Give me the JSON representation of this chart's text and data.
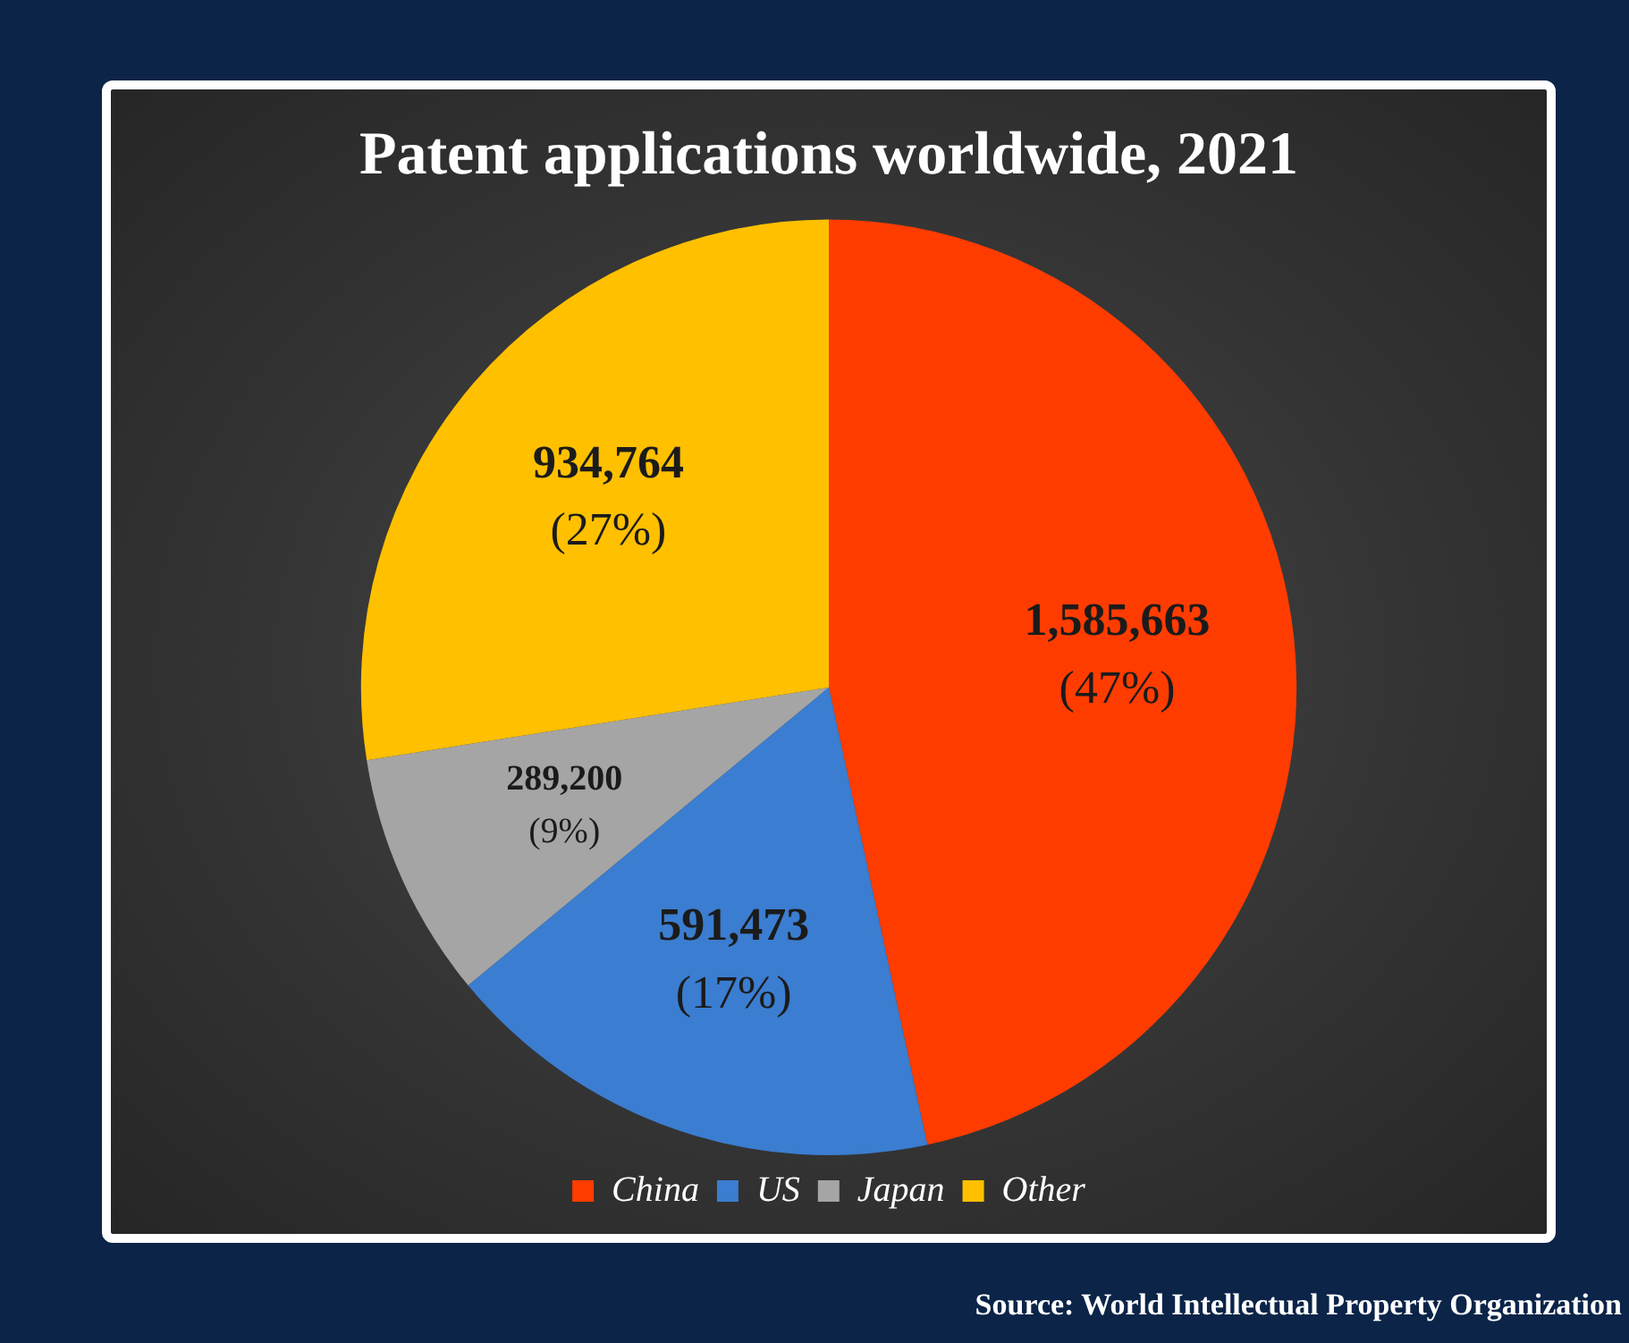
{
  "chart_data": {
    "type": "pie",
    "title": "Patent applications worldwide, 2021",
    "categories": [
      "China",
      "US",
      "Japan",
      "Other"
    ],
    "values": [
      1585663,
      591473,
      289200,
      934764
    ],
    "colors": [
      "#ff3c00",
      "#3b7dd0",
      "#a5a5a5",
      "#ffc000"
    ],
    "value_labels": [
      "1,585,663\n(47%)",
      "591,473\n(17%)",
      "289,200\n(9%)",
      "934,764\n(27%)"
    ],
    "legend": "bottom",
    "annotations": [
      "Source: World Intellectual Property Organization"
    ]
  }
}
